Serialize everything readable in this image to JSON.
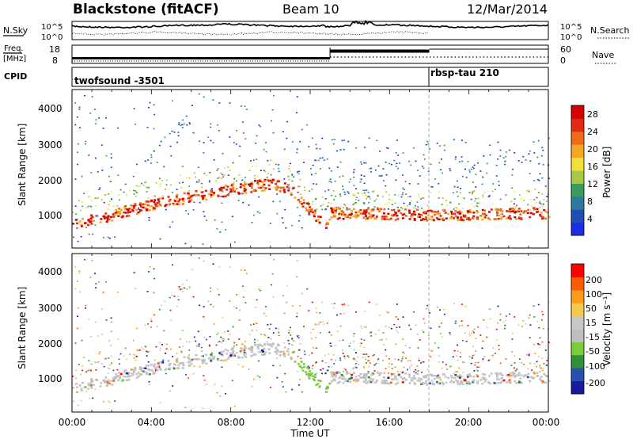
{
  "header": {
    "station": "Blackstone (fitACF)",
    "beam": "Beam 10",
    "date": "12/Mar/2014"
  },
  "noise_panel": {
    "left_label": "N.Sky",
    "right_label": "N.Search",
    "left_ticks": [
      "10^5",
      "10^0"
    ],
    "right_ticks": [
      "10^5",
      "10^0"
    ]
  },
  "freq_panel": {
    "left_label_1": "Freq.",
    "left_label_2": "[MHz]",
    "left_ticks": [
      "18",
      "8"
    ],
    "right_label": "Nave",
    "right_ticks": [
      "60",
      "0"
    ]
  },
  "cpid_panel": {
    "label": "CPID",
    "modes": [
      {
        "name": "twofsound -3501",
        "start_hour": 0
      },
      {
        "name": "rbsp-tau 210",
        "start_hour": 18
      }
    ]
  },
  "time_axis": {
    "label": "Time UT",
    "ticks": [
      "00:00",
      "04:00",
      "08:00",
      "12:00",
      "16:00",
      "20:00",
      "00:00"
    ]
  },
  "colors": {
    "power_scale": [
      "#1e2be6",
      "#1f4fb5",
      "#2c7aa4",
      "#3a9c5a",
      "#a8c846",
      "#f2e03a",
      "#f5a623",
      "#f06a1c",
      "#e02a12",
      "#d40000"
    ],
    "velocity_scale": [
      "#ff0000",
      "#ff5a00",
      "#ff9a1a",
      "#f2c94c",
      "#c8c8c8",
      "#bfbfbf",
      "#7ccb3a",
      "#2f8f3a",
      "#2850b0",
      "#1a1aa0"
    ]
  },
  "chart_data": [
    {
      "type": "heatmap",
      "title": "Power",
      "ylabel": "Slant Range [km]",
      "xlabel": "",
      "y_ticks": [
        "1000",
        "2000",
        "3000",
        "4000"
      ],
      "colorbar_label": "Power [dB]",
      "colorbar_ticks": [
        "4",
        "8",
        "12",
        "16",
        "20",
        "24",
        "28"
      ],
      "xlim_hours": [
        0,
        24
      ],
      "ylim_km": [
        180,
        4500
      ],
      "main_echo_band": [
        {
          "hour": 0,
          "range_km": 900
        },
        {
          "hour": 2,
          "range_km": 1100
        },
        {
          "hour": 4,
          "range_km": 1400
        },
        {
          "hour": 6,
          "range_km": 1600
        },
        {
          "hour": 8,
          "range_km": 1800
        },
        {
          "hour": 10,
          "range_km": 1950
        },
        {
          "hour": 11,
          "range_km": 1800
        },
        {
          "hour": 12,
          "range_km": 1200
        },
        {
          "hour": 12.8,
          "range_km": 850
        },
        {
          "hour": 13,
          "range_km": 1150
        },
        {
          "hour": 18,
          "range_km": 1100
        },
        {
          "hour": 24,
          "range_km": 1150
        }
      ]
    },
    {
      "type": "heatmap",
      "title": "Velocity",
      "ylabel": "Slant Range [km]",
      "xlabel": "Time UT",
      "y_ticks": [
        "1000",
        "2000",
        "3000",
        "4000"
      ],
      "colorbar_label": "Velocity [m s⁻¹]",
      "colorbar_ticks": [
        "200",
        "100",
        "50",
        "15",
        "-15",
        "-50",
        "-100",
        "-200"
      ],
      "xlim_hours": [
        0,
        24
      ],
      "ylim_km": [
        180,
        4500
      ]
    }
  ]
}
